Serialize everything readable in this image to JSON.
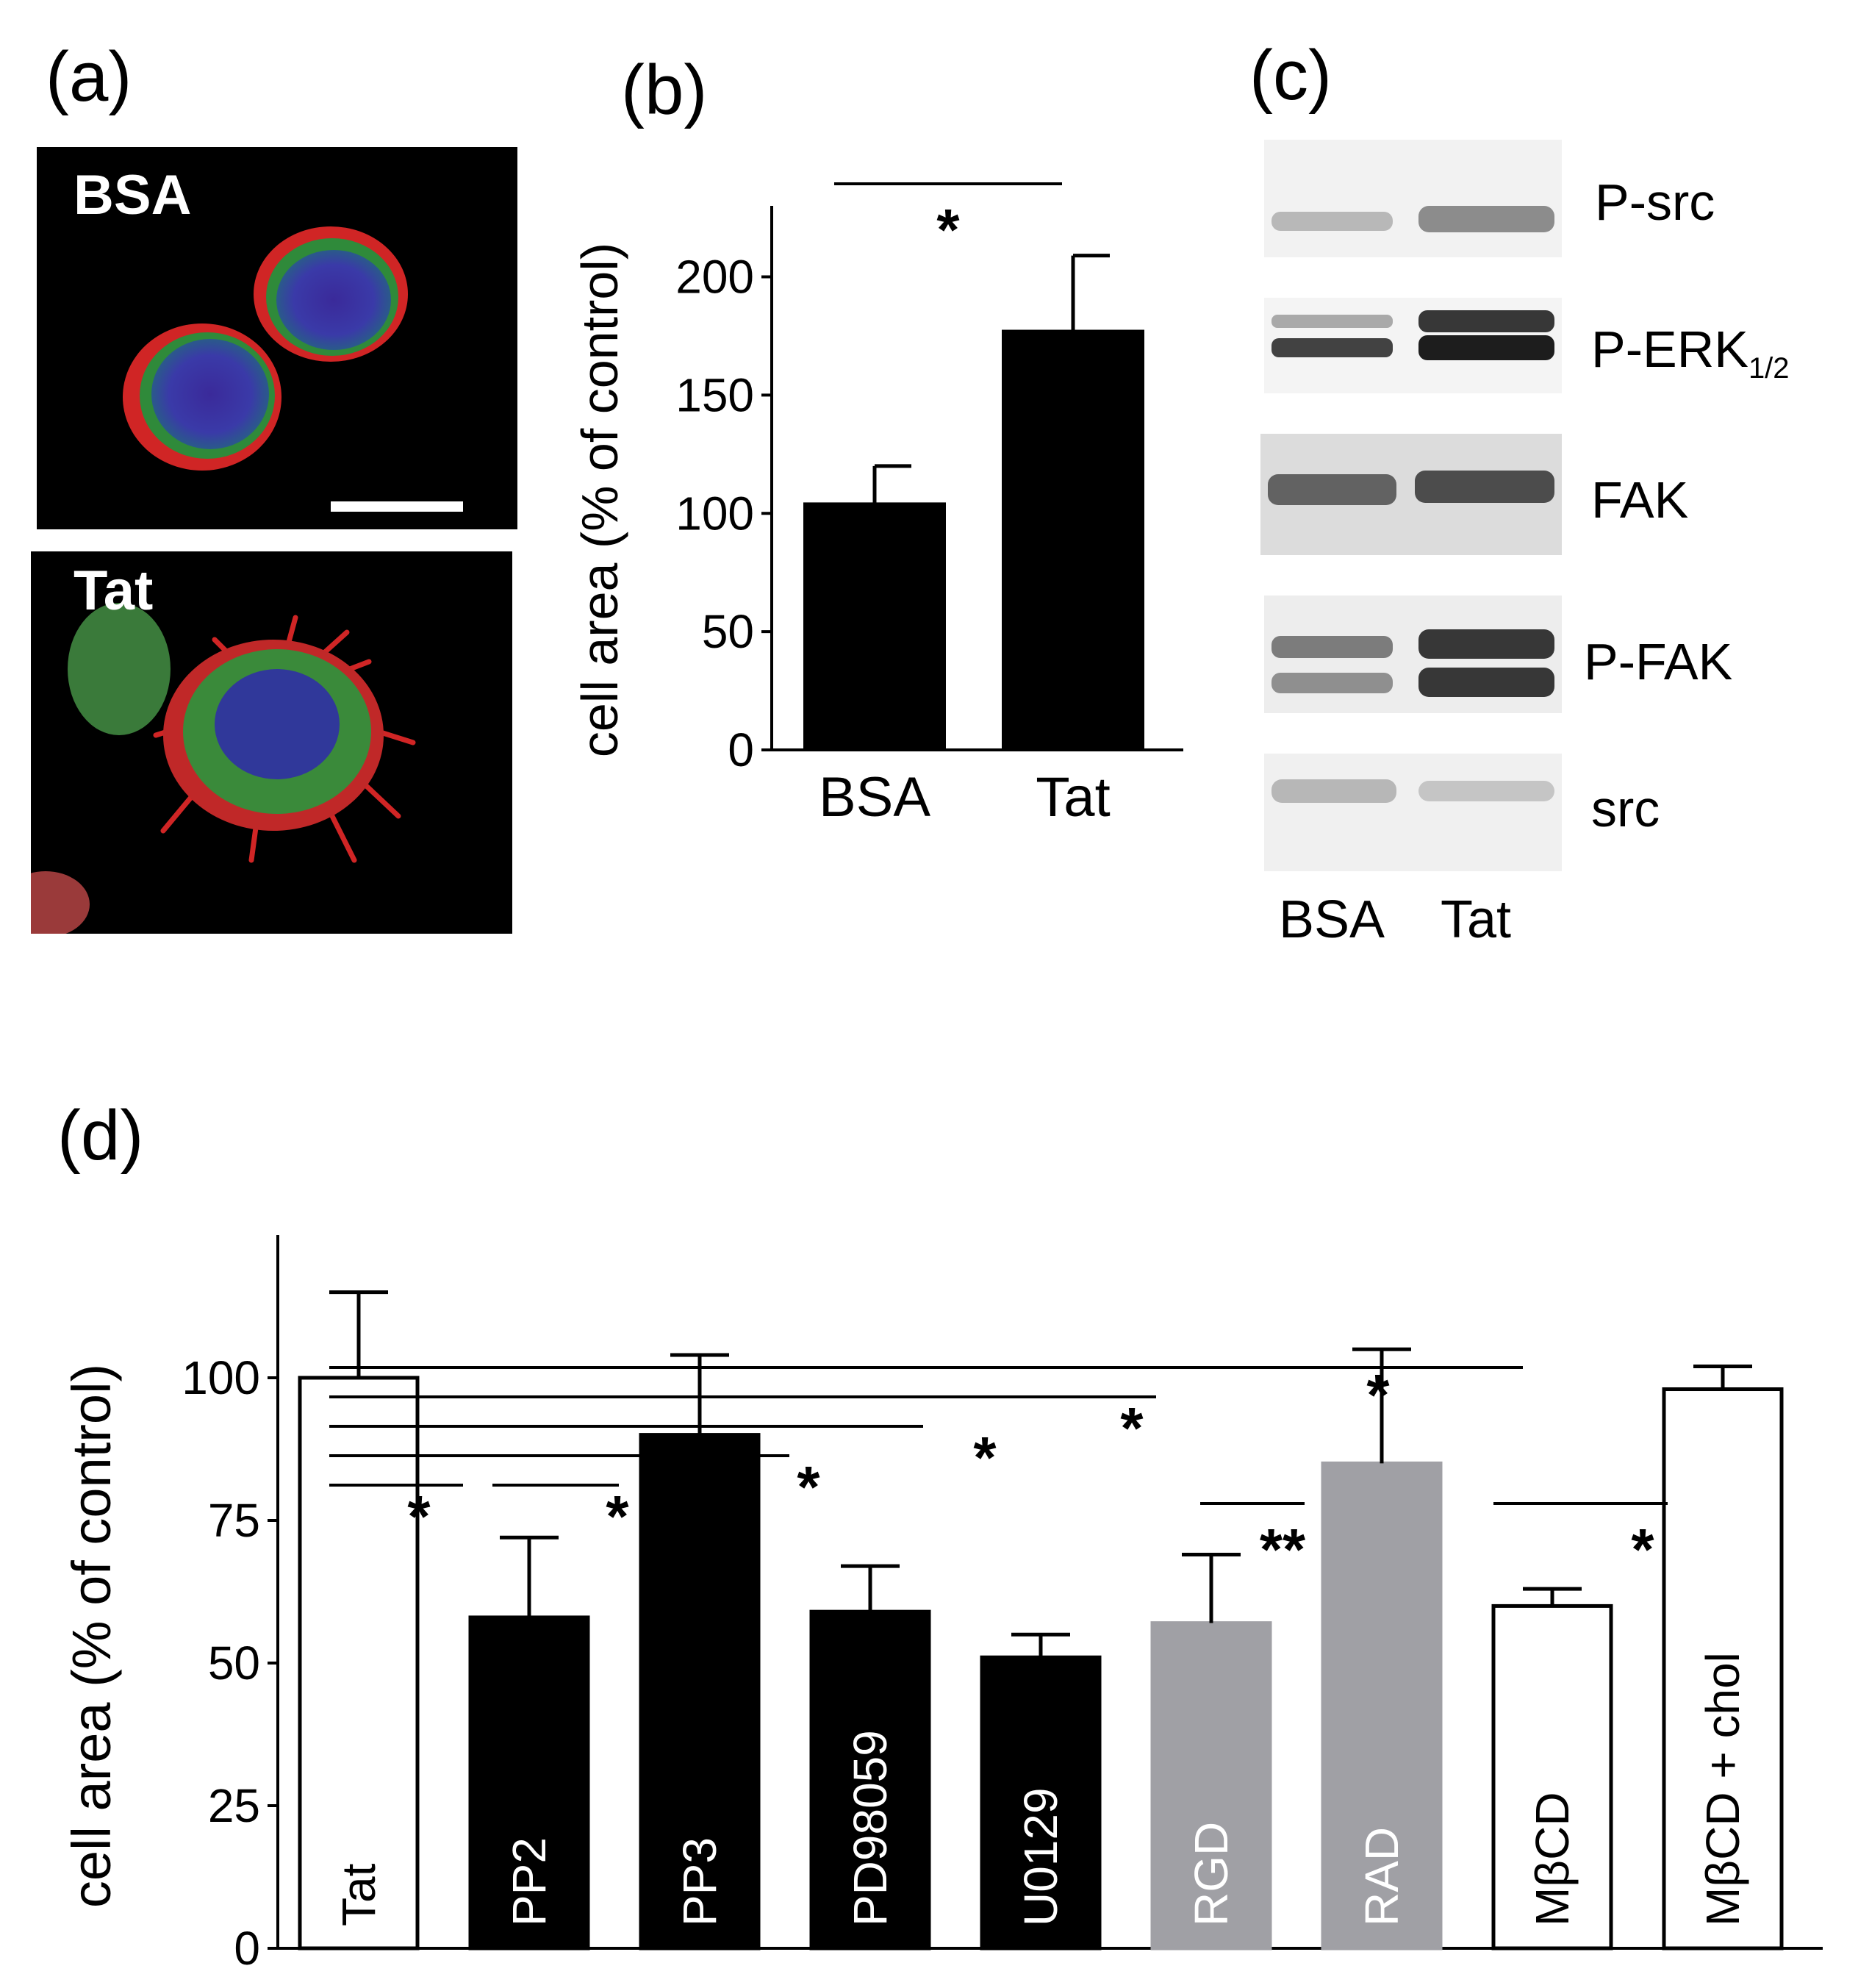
{
  "panel_labels": {
    "a": "(a)",
    "b": "(b)",
    "c": "(c)",
    "d": "(d)"
  },
  "micrographs": [
    {
      "label": "BSA"
    },
    {
      "label": "Tat"
    }
  ],
  "blot": {
    "rows": [
      "P-src",
      "P-ERK",
      "FAK",
      "P-FAK",
      "src"
    ],
    "erk_subscript": "1/2",
    "lanes": [
      "BSA",
      "Tat"
    ]
  },
  "chart_data": [
    {
      "panel": "b",
      "type": "bar",
      "categories": [
        "BSA",
        "Tat"
      ],
      "values": [
        104,
        177
      ],
      "errors": [
        16,
        32
      ],
      "ylabel": "cell area (% of control)",
      "ylim": [
        0,
        230
      ],
      "yticks": [
        "0",
        "50",
        "100",
        "150",
        "200"
      ],
      "bar_colors": [
        "#000000",
        "#000000"
      ],
      "significance": [
        {
          "from": 0,
          "to": 1,
          "label": "*"
        }
      ]
    },
    {
      "panel": "d",
      "type": "bar",
      "categories": [
        "Tat",
        "PP2",
        "PP3",
        "PD98059",
        "U0129",
        "RGD",
        "RAD",
        "MβCD",
        "MβCD + chol"
      ],
      "values": [
        100,
        58,
        90,
        59,
        51,
        57,
        85,
        60,
        98
      ],
      "errors": [
        15,
        14,
        14,
        8,
        4,
        12,
        20,
        3,
        4
      ],
      "ylabel": "cell area (% of control)",
      "ylim": [
        0,
        125
      ],
      "yticks": [
        "0",
        "25",
        "50",
        "75",
        "100"
      ],
      "bar_fills": [
        "#ffffff",
        "#000000",
        "#000000",
        "#000000",
        "#000000",
        "#a0a0a5",
        "#a0a0a5",
        "#ffffff",
        "#ffffff"
      ],
      "label_colors": [
        "#000000",
        "#ffffff",
        "#ffffff",
        "#ffffff",
        "#ffffff",
        "#ffffff",
        "#ffffff",
        "#000000",
        "#000000"
      ],
      "significance": [
        {
          "from": 0,
          "to": 1,
          "label": "*"
        },
        {
          "from": 1,
          "to": 2,
          "label": "*"
        },
        {
          "from": 0,
          "to": 3,
          "label": "*"
        },
        {
          "from": 0,
          "to": 4,
          "label": "*"
        },
        {
          "from": 0,
          "to": 5,
          "label": "*"
        },
        {
          "from": 0,
          "to": 7,
          "label": "*"
        },
        {
          "from": 5,
          "to": 6,
          "label": "**"
        },
        {
          "from": 7,
          "to": 8,
          "label": "*"
        }
      ]
    }
  ]
}
